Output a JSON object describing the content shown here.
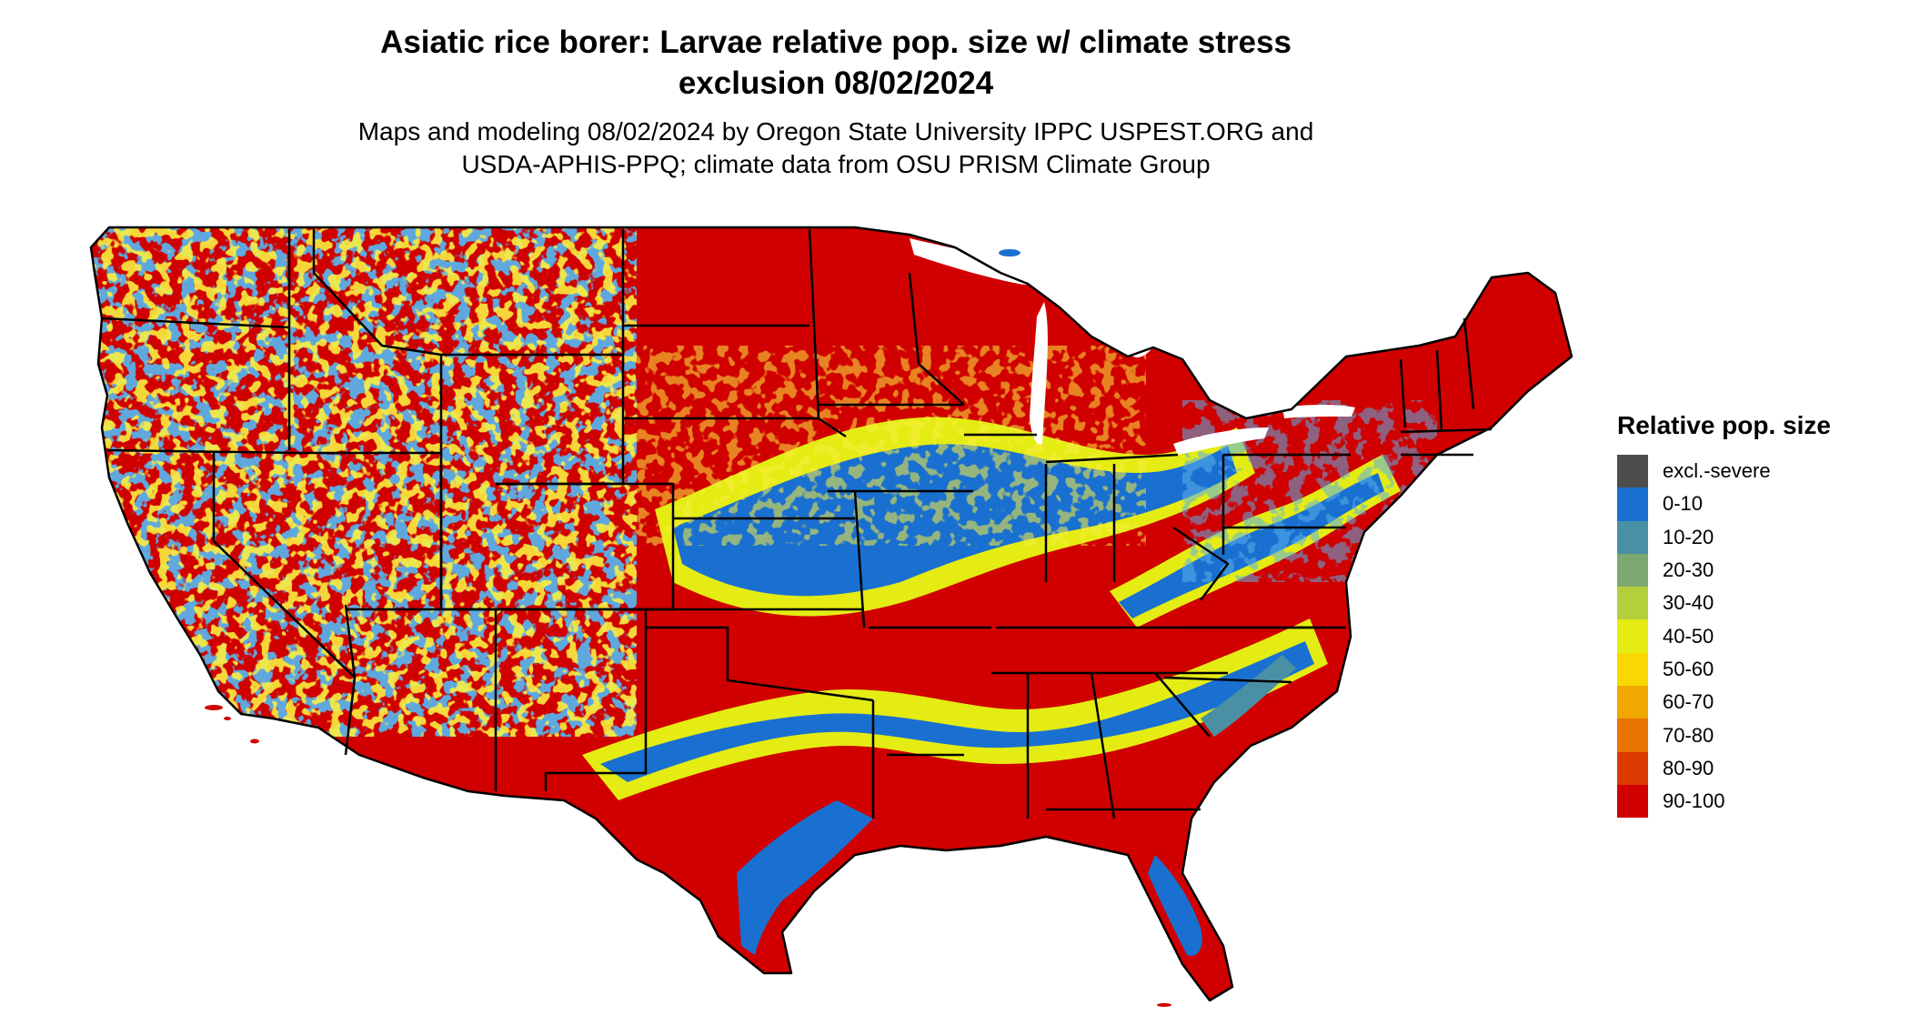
{
  "title": {
    "line1": "Asiatic rice borer: Larvae relative pop. size w/ climate stress",
    "line2": "exclusion 08/02/2024"
  },
  "subtitle": {
    "line1": "Maps and modeling 08/02/2024 by Oregon State University IPPC USPEST.ORG and",
    "line2": "USDA-APHIS-PPQ; climate data from OSU PRISM Climate Group"
  },
  "legend": {
    "title": "Relative pop. size",
    "items": [
      {
        "label": "excl.-severe",
        "color": "#4d4d4d"
      },
      {
        "label": "0-10",
        "color": "#1a70d0"
      },
      {
        "label": "10-20",
        "color": "#4a90a4"
      },
      {
        "label": "20-30",
        "color": "#7ca872"
      },
      {
        "label": "30-40",
        "color": "#b4cf3c"
      },
      {
        "label": "40-50",
        "color": "#e4ec14"
      },
      {
        "label": "50-60",
        "color": "#f8d800"
      },
      {
        "label": "60-70",
        "color": "#f0a800"
      },
      {
        "label": "70-80",
        "color": "#e87400"
      },
      {
        "label": "80-90",
        "color": "#dc3a00"
      },
      {
        "label": "90-100",
        "color": "#d00000"
      }
    ]
  },
  "map": {
    "region": "Contiguous United States",
    "state_border_color": "#000000"
  }
}
